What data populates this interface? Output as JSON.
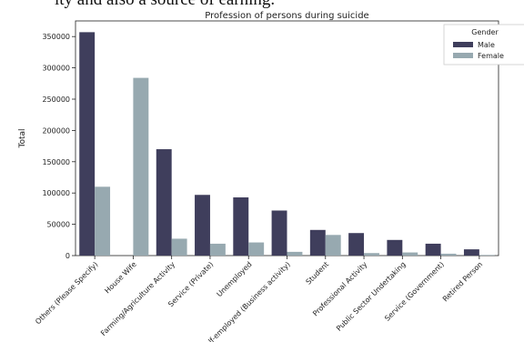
{
  "page": {
    "top_text": "ity and also a source of earning."
  },
  "chart_data": {
    "type": "bar",
    "title": "Profession of persons during suicide",
    "xlabel": "",
    "ylabel": "Total",
    "ylim": [
      0,
      375000
    ],
    "yticks": [
      0,
      50000,
      100000,
      150000,
      200000,
      250000,
      300000,
      350000
    ],
    "ytick_labels": [
      "0",
      "50000",
      "100000",
      "150000",
      "200000",
      "250000",
      "300000",
      "350000"
    ],
    "grid": false,
    "legend": {
      "title": "Gender",
      "placement": "top-right"
    },
    "categories": [
      "Others (Please Specify)",
      "House Wife",
      "Farming/Agriculture Activity",
      "Service (Private)",
      "Unemployed",
      "Self-employed (Business activity)",
      "Student",
      "Professional Activity",
      "Public Sector Undertaking",
      "Service (Government)",
      "Retired Person"
    ],
    "series": [
      {
        "name": "Male",
        "color": "#3f3e5c",
        "values": [
          357000,
          0,
          170000,
          97000,
          93000,
          72000,
          41000,
          36000,
          25000,
          19000,
          10000
        ]
      },
      {
        "name": "Female",
        "color": "#97a9b0",
        "values": [
          110000,
          284000,
          27000,
          19000,
          21000,
          6000,
          33000,
          4000,
          5000,
          3000,
          1000
        ]
      }
    ]
  }
}
